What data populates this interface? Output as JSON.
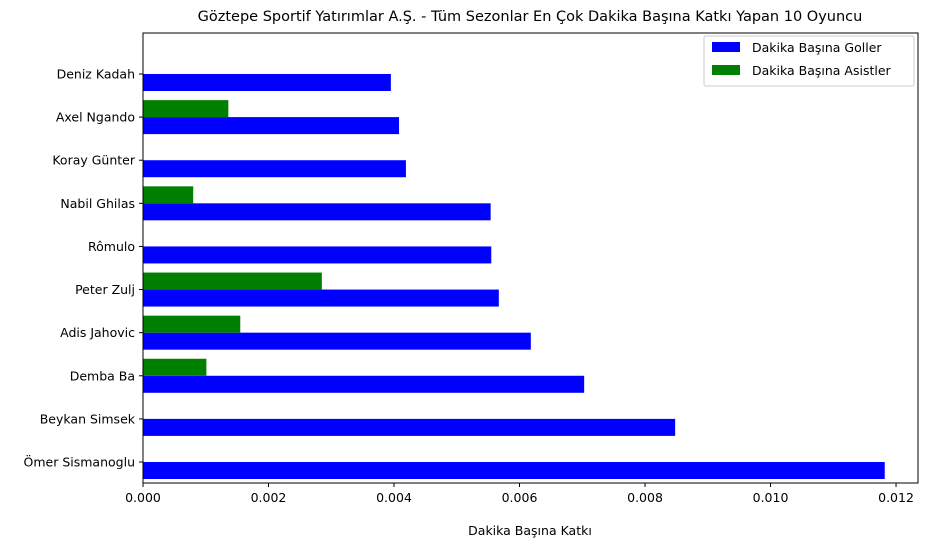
{
  "chart_data": {
    "type": "bar",
    "orientation": "horizontal",
    "title": "Göztepe Sportif Yatırımlar A.Ş. - Tüm Sezonlar En Çok Dakika Başına Katkı Yapan 10 Oyuncu",
    "xlabel": "Dakika Başına Katkı",
    "ylabel": "",
    "xlim": [
      0,
      0.01235
    ],
    "xticks": [
      "0.000",
      "0.002",
      "0.004",
      "0.006",
      "0.008",
      "0.010",
      "0.012"
    ],
    "categories": [
      "Ömer Sismanoglu",
      "Beykan Simsek",
      "Demba Ba",
      "Adis Jahovic",
      "Peter Zulj",
      "Rômulo",
      "Nabil Ghilas",
      "Koray Günter",
      "Axel Ngando",
      "Deniz Kadah"
    ],
    "series": [
      {
        "name": "Dakika Başına Goller",
        "color": "#0000ff",
        "values": [
          0.01182,
          0.00848,
          0.00703,
          0.00618,
          0.00567,
          0.00555,
          0.00554,
          0.00419,
          0.00408,
          0.00395
        ]
      },
      {
        "name": "Dakika Başına Asistler",
        "color": "#008000",
        "values": [
          0,
          0,
          0.00101,
          0.00155,
          0.00285,
          0,
          0.0008,
          0,
          0.00136,
          0
        ]
      }
    ],
    "legend_position": "top-right",
    "grid": false
  }
}
